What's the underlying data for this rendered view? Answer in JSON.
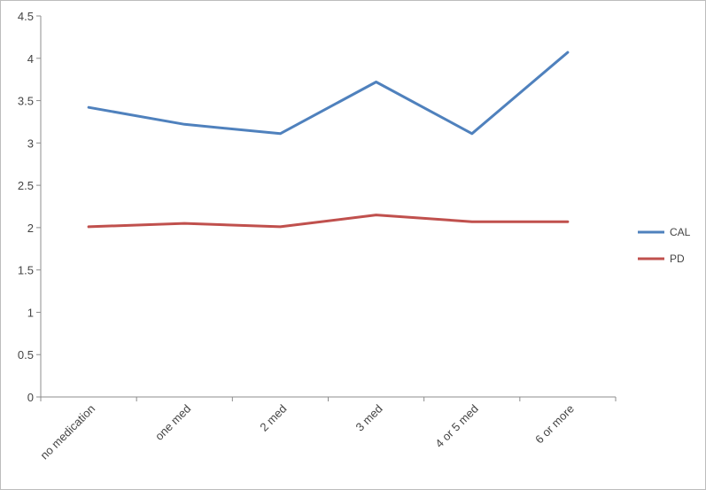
{
  "chart_data": {
    "type": "line",
    "title": "",
    "xlabel": "",
    "ylabel": "",
    "categories": [
      "no medication",
      "one med",
      "2 med",
      "3 med",
      "4 or 5 med",
      "6 or more"
    ],
    "series": [
      {
        "name": "CAL",
        "color": "#4f81bd",
        "values": [
          3.42,
          3.22,
          3.11,
          3.72,
          3.11,
          4.07
        ]
      },
      {
        "name": "PD",
        "color": "#c0504d",
        "values": [
          2.01,
          2.05,
          2.01,
          2.15,
          2.07,
          2.07
        ]
      }
    ],
    "ylim": [
      0,
      4.5
    ],
    "yticks": [
      "0",
      "0.5",
      "1",
      "1.5",
      "2",
      "2.5",
      "3",
      "3.5",
      "4",
      "4.5"
    ],
    "grid": false,
    "legend_position": "right"
  }
}
